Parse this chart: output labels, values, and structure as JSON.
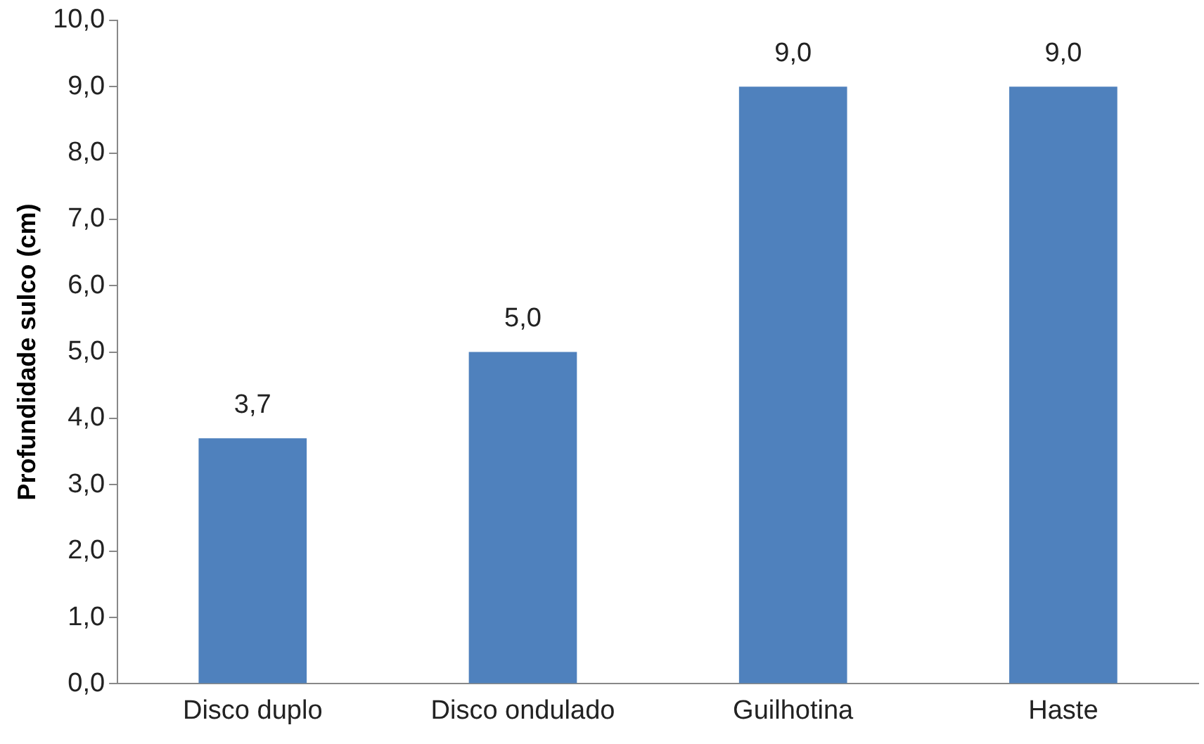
{
  "chart_data": {
    "type": "bar",
    "ylabel": "Profundidade sulco (cm)",
    "categories": [
      "Disco duplo",
      "Disco ondulado",
      "Guilhotina",
      "Haste"
    ],
    "values": [
      3.7,
      5.0,
      9.0,
      9.0
    ],
    "value_labels": [
      "3,7",
      "5,0",
      "9,0",
      "9,0"
    ],
    "color": "#4f81bd",
    "ylim": [
      0,
      10
    ],
    "yticks": [
      {
        "value": 0,
        "label": "0,0"
      },
      {
        "value": 1,
        "label": "1,0"
      },
      {
        "value": 2,
        "label": "2,0"
      },
      {
        "value": 3,
        "label": "3,0"
      },
      {
        "value": 4,
        "label": "4,0"
      },
      {
        "value": 5,
        "label": "5,0"
      },
      {
        "value": 6,
        "label": "6,0"
      },
      {
        "value": 7,
        "label": "7,0"
      },
      {
        "value": 8,
        "label": "8,0"
      },
      {
        "value": 9,
        "label": "9,0"
      },
      {
        "value": 10,
        "label": "10,0"
      }
    ],
    "grid": false,
    "legend": false
  }
}
